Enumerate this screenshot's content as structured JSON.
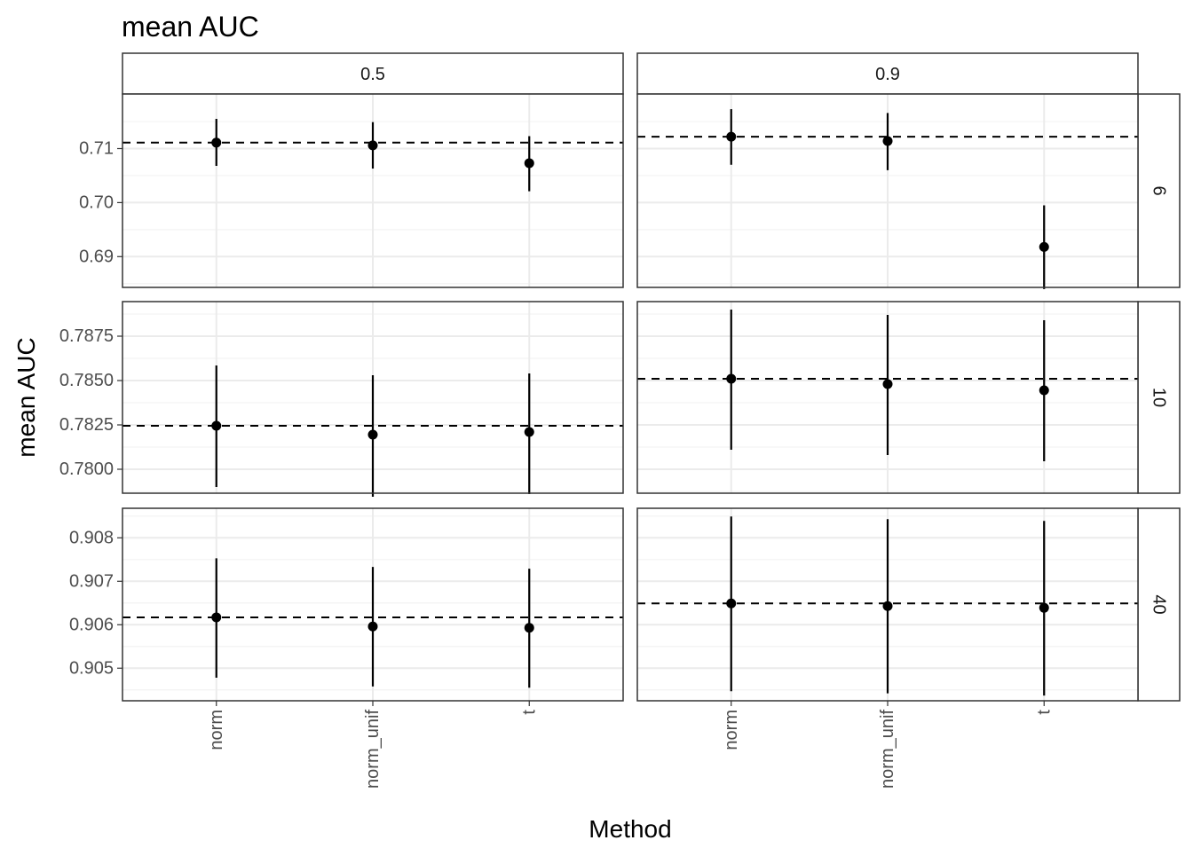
{
  "chart_data": {
    "type": "scatter",
    "subtype": "faceted point-range with dashed reference line",
    "title": "mean AUC",
    "xlabel": "Method",
    "ylabel": "mean AUC",
    "categories": [
      "norm",
      "norm_unif",
      "t"
    ],
    "facet_cols": [
      "0.5",
      "0.9"
    ],
    "facet_rows": [
      "6",
      "10",
      "40"
    ],
    "grid": true,
    "legend": "none",
    "colors": {
      "points": "#000000",
      "panel_border": "#333333",
      "grid_major": "#ebebeb",
      "grid_minor": "#f3f3f3",
      "strip_bg": "#ffffff"
    },
    "rows": [
      {
        "label": "6",
        "ylim": [
          0.6843,
          0.7201
        ],
        "yticks": [
          "0.69",
          "0.70",
          "0.71"
        ],
        "panels": [
          {
            "col": "0.5",
            "reference": 0.7111,
            "points": [
              {
                "category": "norm",
                "y": 0.7111,
                "lower": 0.7068,
                "upper": 0.7155
              },
              {
                "category": "norm_unif",
                "y": 0.7106,
                "lower": 0.7063,
                "upper": 0.7149
              },
              {
                "category": "t",
                "y": 0.7073,
                "lower": 0.7021,
                "upper": 0.7123
              }
            ]
          },
          {
            "col": "0.9",
            "reference": 0.7122,
            "points": [
              {
                "category": "norm",
                "y": 0.7122,
                "lower": 0.707,
                "upper": 0.7173
              },
              {
                "category": "norm_unif",
                "y": 0.7114,
                "lower": 0.706,
                "upper": 0.7166
              },
              {
                "category": "t",
                "y": 0.6918,
                "lower": 0.684,
                "upper": 0.6995
              }
            ]
          }
        ]
      },
      {
        "label": "10",
        "ylim": [
          0.77865,
          0.78945
        ],
        "yticks": [
          "0.7800",
          "0.7825",
          "0.7850",
          "0.7875"
        ],
        "panels": [
          {
            "col": "0.5",
            "reference": 0.78245,
            "points": [
              {
                "category": "norm",
                "y": 0.78245,
                "lower": 0.779,
                "upper": 0.78585
              },
              {
                "category": "norm_unif",
                "y": 0.78195,
                "lower": 0.77845,
                "upper": 0.7853
              },
              {
                "category": "t",
                "y": 0.7821,
                "lower": 0.7786,
                "upper": 0.7854
              }
            ]
          },
          {
            "col": "0.9",
            "reference": 0.7851,
            "points": [
              {
                "category": "norm",
                "y": 0.7851,
                "lower": 0.7811,
                "upper": 0.789
              },
              {
                "category": "norm_unif",
                "y": 0.7848,
                "lower": 0.7808,
                "upper": 0.7887
              },
              {
                "category": "t",
                "y": 0.78445,
                "lower": 0.78045,
                "upper": 0.7884
              }
            ]
          }
        ]
      },
      {
        "label": "40",
        "ylim": [
          0.90425,
          0.90868
        ],
        "yticks": [
          "0.905",
          "0.906",
          "0.907",
          "0.908"
        ],
        "panels": [
          {
            "col": "0.5",
            "reference": 0.90617,
            "points": [
              {
                "category": "norm",
                "y": 0.90617,
                "lower": 0.90478,
                "upper": 0.90753
              },
              {
                "category": "norm_unif",
                "y": 0.90596,
                "lower": 0.90458,
                "upper": 0.90733
              },
              {
                "category": "t",
                "y": 0.90593,
                "lower": 0.90455,
                "upper": 0.90729
              }
            ]
          },
          {
            "col": "0.9",
            "reference": 0.90649,
            "points": [
              {
                "category": "norm",
                "y": 0.90649,
                "lower": 0.90447,
                "upper": 0.90849
              },
              {
                "category": "norm_unif",
                "y": 0.90643,
                "lower": 0.90442,
                "upper": 0.90843
              },
              {
                "category": "t",
                "y": 0.90639,
                "lower": 0.90437,
                "upper": 0.90839
              }
            ]
          }
        ]
      }
    ]
  }
}
